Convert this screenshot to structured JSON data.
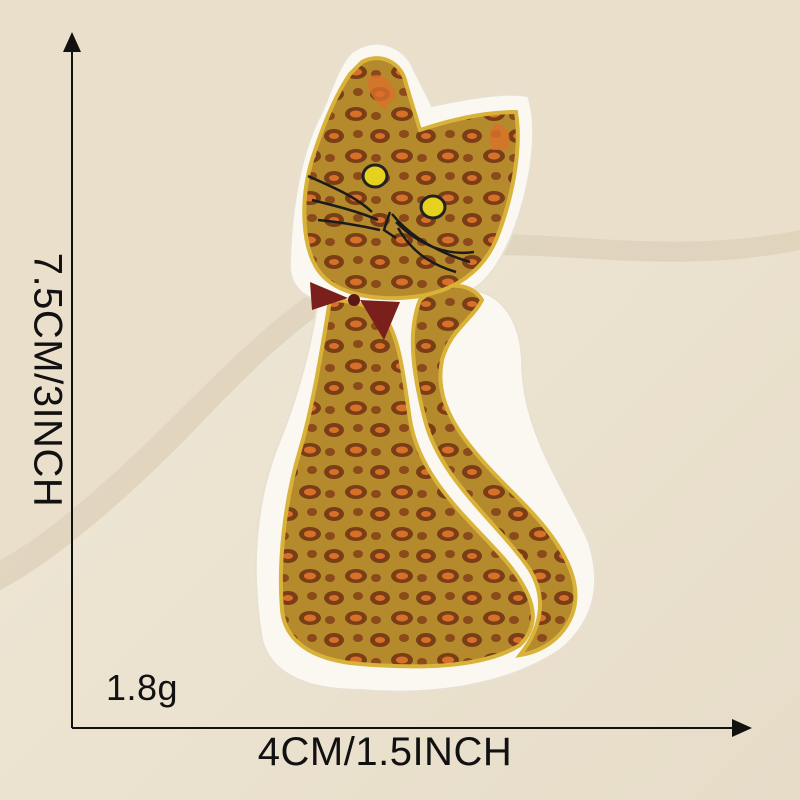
{
  "dimensions": {
    "height_label": "7.5CM/3INCH",
    "width_label": "4CM/1.5INCH"
  },
  "weight_label": "1.8g",
  "colors": {
    "background": "#ece3d1",
    "fabric_fold": "#e2d6c0",
    "felt_border": "#fbf8f2",
    "gold_thread": "#d9b23a",
    "tan_fill": "#b58a2c",
    "brown_spot": "#7a3e16",
    "orange_spot": "#d9702a",
    "bow": "#7a1f1c",
    "eye": "#e6d21e",
    "arrow": "#111111"
  }
}
